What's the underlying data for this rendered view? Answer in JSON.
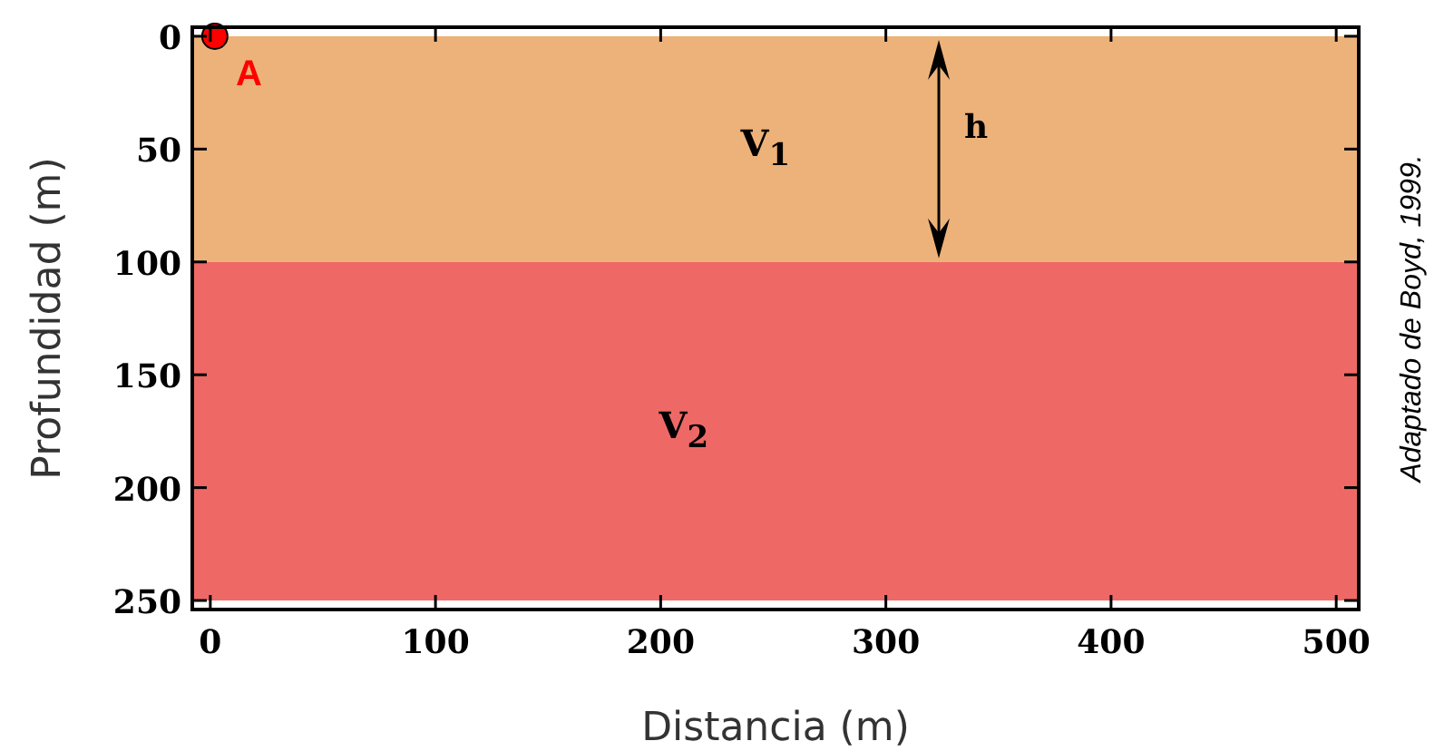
{
  "chart_data": {
    "type": "scatter",
    "xlabel": "Distancia (m)",
    "ylabel": "Profundidad (m)",
    "xlim": [
      -8,
      510
    ],
    "xticks": [
      0,
      100,
      200,
      300,
      400,
      500
    ],
    "ylim": [
      254,
      -4
    ],
    "yticks": [
      0,
      50,
      100,
      150,
      200,
      250
    ],
    "grid": false,
    "legend": "top left",
    "marker": "circle",
    "series": [
      {
        "name": "A",
        "color": "#ff0000",
        "x": [
          2
        ],
        "values": [
          0
        ]
      }
    ],
    "bands": [
      {
        "axis": "y",
        "from": 0,
        "to": 100,
        "label": "V$_{1}$",
        "color": "#edb279"
      },
      {
        "axis": "y",
        "from": 100,
        "to": 250,
        "label": "V$_{2}$",
        "color": "#ee6966"
      }
    ],
    "annotations": [
      "h",
      "Adaptado de Boyd, 1999."
    ]
  }
}
